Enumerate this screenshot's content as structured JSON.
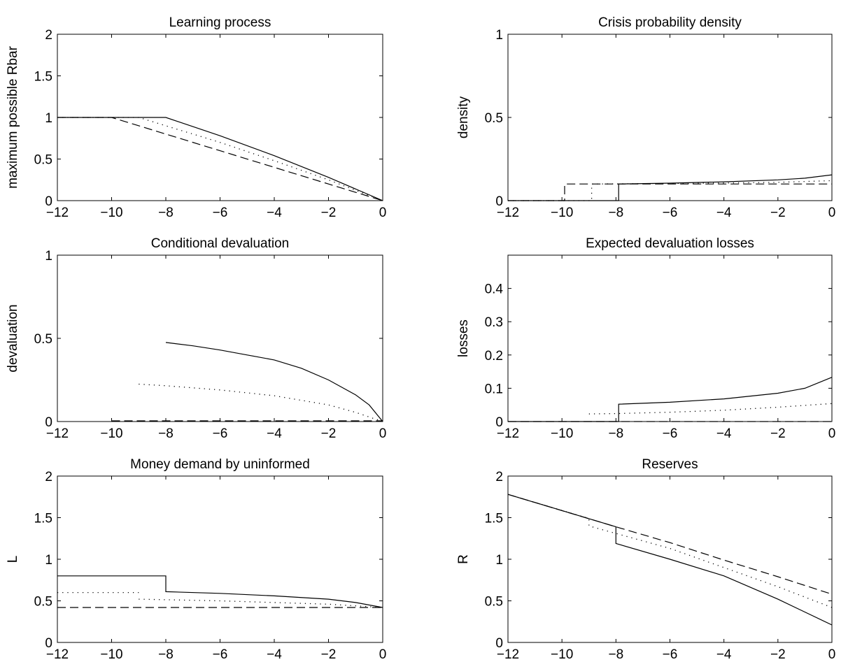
{
  "chart_data": [
    {
      "type": "line",
      "title": "Learning process",
      "xlabel": "",
      "ylabel": "maximum possible Rbar",
      "xlim": [
        -12,
        0
      ],
      "ylim": [
        0,
        2
      ],
      "xticks": [
        -12,
        -10,
        -8,
        -6,
        -4,
        -2,
        0
      ],
      "yticks": [
        0,
        0.5,
        1,
        1.5,
        2
      ],
      "grid": false,
      "series": [
        {
          "style": "solid",
          "segments": [
            [
              [
                -12,
                1
              ],
              [
                -8,
                1
              ],
              [
                -6,
                0.78
              ],
              [
                -4,
                0.54
              ],
              [
                -2,
                0.28
              ],
              [
                0,
                0
              ]
            ]
          ]
        },
        {
          "style": "dotted",
          "segments": [
            [
              [
                -12,
                1
              ],
              [
                -9,
                1
              ],
              [
                -6,
                0.7
              ],
              [
                -4,
                0.48
              ],
              [
                -2,
                0.25
              ],
              [
                0,
                0
              ]
            ]
          ]
        },
        {
          "style": "dashed",
          "segments": [
            [
              [
                -12,
                1
              ],
              [
                -10,
                1
              ],
              [
                -8,
                0.8
              ],
              [
                -6,
                0.6
              ],
              [
                -4,
                0.4
              ],
              [
                -2,
                0.2
              ],
              [
                0,
                0
              ]
            ]
          ]
        }
      ]
    },
    {
      "type": "line",
      "title": "Crisis probability density",
      "xlabel": "",
      "ylabel": "density",
      "xlim": [
        -12,
        0
      ],
      "ylim": [
        0,
        1
      ],
      "xticks": [
        -12,
        -10,
        -8,
        -6,
        -4,
        -2,
        0
      ],
      "yticks": [
        0,
        0.5,
        1
      ],
      "grid": false,
      "series": [
        {
          "style": "solid",
          "segments": [
            [
              [
                -12,
                0
              ],
              [
                -7.9,
                0
              ],
              [
                -7.9,
                0.1
              ],
              [
                -6,
                0.105
              ],
              [
                -4,
                0.113
              ],
              [
                -2,
                0.125
              ],
              [
                -1,
                0.135
              ],
              [
                0,
                0.155
              ]
            ]
          ]
        },
        {
          "style": "dotted",
          "segments": [
            [
              [
                -12,
                0
              ],
              [
                -8.9,
                0
              ],
              [
                -8.9,
                0.1
              ],
              [
                -6,
                0.103
              ],
              [
                -4,
                0.106
              ],
              [
                -2,
                0.11
              ],
              [
                0,
                0.12
              ]
            ]
          ]
        },
        {
          "style": "dashed",
          "segments": [
            [
              [
                -12,
                0
              ],
              [
                -9.9,
                0
              ],
              [
                -9.9,
                0.1
              ],
              [
                0,
                0.1
              ]
            ]
          ]
        }
      ]
    },
    {
      "type": "line",
      "title": "Conditional devaluation",
      "xlabel": "",
      "ylabel": "devaluation",
      "xlim": [
        -12,
        0
      ],
      "ylim": [
        0,
        1
      ],
      "xticks": [
        -12,
        -10,
        -8,
        -6,
        -4,
        -2,
        0
      ],
      "yticks": [
        0,
        0.5,
        1
      ],
      "grid": false,
      "series": [
        {
          "style": "solid",
          "segments": [
            [
              [
                -8,
                0.475
              ],
              [
                -7,
                0.455
              ],
              [
                -6,
                0.43
              ],
              [
                -5,
                0.4
              ],
              [
                -4,
                0.37
              ],
              [
                -3,
                0.32
              ],
              [
                -2,
                0.25
              ],
              [
                -1,
                0.16
              ],
              [
                -0.5,
                0.1
              ],
              [
                0,
                0
              ]
            ]
          ]
        },
        {
          "style": "dotted",
          "segments": [
            [
              [
                -9,
                0.225
              ],
              [
                -8,
                0.215
              ],
              [
                -6,
                0.19
              ],
              [
                -4,
                0.155
              ],
              [
                -2,
                0.1
              ],
              [
                -1,
                0.055
              ],
              [
                0,
                0
              ]
            ]
          ]
        },
        {
          "style": "dashed",
          "segments": [
            [
              [
                -10,
                0.004
              ],
              [
                0,
                0.004
              ]
            ]
          ]
        }
      ]
    },
    {
      "type": "line",
      "title": "Expected devaluation losses",
      "xlabel": "",
      "ylabel": "losses",
      "xlim": [
        -12,
        0
      ],
      "ylim": [
        0,
        0.5
      ],
      "xticks": [
        -12,
        -10,
        -8,
        -6,
        -4,
        -2,
        0
      ],
      "yticks": [
        0,
        0.1,
        0.2,
        0.3,
        0.4
      ],
      "grid": false,
      "series": [
        {
          "style": "solid",
          "segments": [
            [
              [
                -12,
                0
              ],
              [
                -7.9,
                0
              ],
              [
                -7.9,
                0.052
              ],
              [
                -6,
                0.058
              ],
              [
                -4,
                0.068
              ],
              [
                -2,
                0.085
              ],
              [
                -1,
                0.1
              ],
              [
                0,
                0.133
              ]
            ]
          ]
        },
        {
          "style": "dotted",
          "segments": [
            [
              [
                -9,
                0.023
              ],
              [
                -8,
                0.024
              ],
              [
                -6,
                0.028
              ],
              [
                -4,
                0.034
              ],
              [
                -2,
                0.043
              ],
              [
                0,
                0.054
              ]
            ]
          ]
        },
        {
          "style": "dashed",
          "segments": [
            [
              [
                -12,
                0
              ],
              [
                0,
                0
              ]
            ]
          ]
        }
      ]
    },
    {
      "type": "line",
      "title": "Money demand by uninformed",
      "xlabel": "",
      "ylabel": "L",
      "xlim": [
        -12,
        0
      ],
      "ylim": [
        0,
        2
      ],
      "xticks": [
        -12,
        -10,
        -8,
        -6,
        -4,
        -2,
        0
      ],
      "yticks": [
        0,
        0.5,
        1,
        1.5,
        2
      ],
      "grid": false,
      "series": [
        {
          "style": "solid",
          "segments": [
            [
              [
                -12,
                0.8
              ],
              [
                -8,
                0.8
              ],
              [
                -8,
                0.61
              ],
              [
                -6,
                0.59
              ],
              [
                -4,
                0.56
              ],
              [
                -2,
                0.52
              ],
              [
                -1,
                0.48
              ],
              [
                0,
                0.42
              ]
            ]
          ]
        },
        {
          "style": "dotted",
          "segments": [
            [
              [
                -12,
                0.6
              ],
              [
                -9,
                0.6
              ]
            ],
            [
              [
                -9,
                0.52
              ],
              [
                -6,
                0.5
              ],
              [
                -4,
                0.48
              ],
              [
                -2,
                0.46
              ],
              [
                0,
                0.42
              ]
            ]
          ]
        },
        {
          "style": "dashed",
          "segments": [
            [
              [
                -12,
                0.42
              ],
              [
                0,
                0.42
              ]
            ]
          ]
        }
      ]
    },
    {
      "type": "line",
      "title": "Reserves",
      "xlabel": "",
      "ylabel": "R",
      "xlim": [
        -12,
        0
      ],
      "ylim": [
        0,
        2
      ],
      "xticks": [
        -12,
        -10,
        -8,
        -6,
        -4,
        -2,
        0
      ],
      "yticks": [
        0,
        0.5,
        1,
        1.5,
        2
      ],
      "grid": false,
      "series": [
        {
          "style": "solid",
          "segments": [
            [
              [
                -12,
                1.78
              ],
              [
                -8,
                1.39
              ],
              [
                -8,
                1.19
              ],
              [
                -6,
                1.0
              ],
              [
                -4,
                0.8
              ],
              [
                -2,
                0.52
              ],
              [
                0,
                0.21
              ]
            ]
          ]
        },
        {
          "style": "dotted",
          "segments": [
            [
              [
                -12,
                1.78
              ],
              [
                -9,
                1.49
              ],
              [
                -9,
                1.4
              ],
              [
                -6,
                1.13
              ],
              [
                -4,
                0.9
              ],
              [
                -2,
                0.67
              ],
              [
                0,
                0.42
              ]
            ]
          ]
        },
        {
          "style": "dashed",
          "segments": [
            [
              [
                -12,
                1.78
              ],
              [
                -8,
                1.39
              ],
              [
                -6,
                1.2
              ],
              [
                -4,
                0.99
              ],
              [
                -2,
                0.79
              ],
              [
                0,
                0.58
              ]
            ]
          ]
        }
      ]
    }
  ]
}
